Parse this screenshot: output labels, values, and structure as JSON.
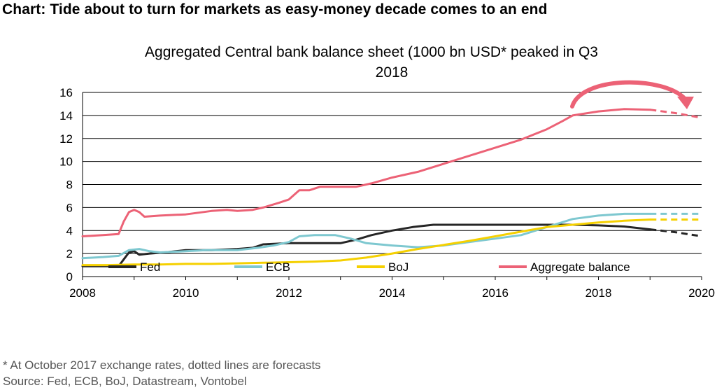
{
  "headline": "Chart: Tide about to turn for markets as easy-money decade comes to an end",
  "footnote": "* At October 2017 exchange rates, dotted lines are forecasts",
  "source": "Source: Fed, ECB, BoJ, Datastream, Vontobel",
  "colors": {
    "fed": "#262626",
    "ecb": "#7ec8d0",
    "boj": "#f5d000",
    "aggregate": "#ec6276",
    "grid": "#000000"
  },
  "chart_data": {
    "type": "line",
    "title_line1": "Aggregated Central bank balance sheet (1000 bn USD* peaked in Q3",
    "title_line2": "2018",
    "xlabel": "",
    "ylabel": "",
    "xlim": [
      2008,
      2020
    ],
    "ylim": [
      0,
      16
    ],
    "x_ticks": [
      2008,
      2010,
      2012,
      2014,
      2016,
      2018,
      2020
    ],
    "y_ticks": [
      0,
      2,
      4,
      6,
      8,
      10,
      12,
      14,
      16
    ],
    "grid": true,
    "legend_position": "bottom-inside",
    "annotation": "curved-arrow-near-peak",
    "series": [
      {
        "name": "Fed",
        "color_key": "fed",
        "actual": [
          [
            2008.0,
            0.9
          ],
          [
            2008.7,
            0.9
          ],
          [
            2008.8,
            1.5
          ],
          [
            2008.9,
            2.1
          ],
          [
            2009.0,
            2.2
          ],
          [
            2009.1,
            1.9
          ],
          [
            2009.3,
            2.0
          ],
          [
            2009.6,
            2.1
          ],
          [
            2010.0,
            2.3
          ],
          [
            2010.5,
            2.3
          ],
          [
            2011.0,
            2.4
          ],
          [
            2011.3,
            2.5
          ],
          [
            2011.5,
            2.8
          ],
          [
            2012.0,
            2.9
          ],
          [
            2012.5,
            2.9
          ],
          [
            2013.0,
            2.9
          ],
          [
            2013.3,
            3.2
          ],
          [
            2013.6,
            3.6
          ],
          [
            2014.0,
            4.0
          ],
          [
            2014.4,
            4.3
          ],
          [
            2014.8,
            4.5
          ],
          [
            2015.5,
            4.5
          ],
          [
            2016.5,
            4.5
          ],
          [
            2017.5,
            4.5
          ],
          [
            2018.0,
            4.45
          ],
          [
            2018.5,
            4.35
          ],
          [
            2019.0,
            4.1
          ]
        ],
        "forecast": [
          [
            2019.0,
            4.1
          ],
          [
            2019.5,
            3.85
          ],
          [
            2020.0,
            3.5
          ]
        ]
      },
      {
        "name": "ECB",
        "color_key": "ecb",
        "actual": [
          [
            2008.0,
            1.6
          ],
          [
            2008.4,
            1.7
          ],
          [
            2008.7,
            1.8
          ],
          [
            2008.9,
            2.3
          ],
          [
            2009.1,
            2.4
          ],
          [
            2009.3,
            2.2
          ],
          [
            2009.5,
            2.1
          ],
          [
            2010.0,
            2.2
          ],
          [
            2010.4,
            2.3
          ],
          [
            2010.8,
            2.3
          ],
          [
            2011.0,
            2.3
          ],
          [
            2011.4,
            2.5
          ],
          [
            2011.7,
            2.7
          ],
          [
            2012.0,
            3.0
          ],
          [
            2012.2,
            3.5
          ],
          [
            2012.5,
            3.6
          ],
          [
            2012.9,
            3.6
          ],
          [
            2013.2,
            3.3
          ],
          [
            2013.5,
            2.9
          ],
          [
            2014.0,
            2.7
          ],
          [
            2014.5,
            2.55
          ],
          [
            2015.0,
            2.7
          ],
          [
            2015.5,
            3.0
          ],
          [
            2016.0,
            3.3
          ],
          [
            2016.5,
            3.6
          ],
          [
            2017.0,
            4.3
          ],
          [
            2017.5,
            5.0
          ],
          [
            2018.0,
            5.3
          ],
          [
            2018.5,
            5.45
          ],
          [
            2019.0,
            5.45
          ]
        ],
        "forecast": [
          [
            2019.0,
            5.45
          ],
          [
            2019.5,
            5.45
          ],
          [
            2020.0,
            5.45
          ]
        ]
      },
      {
        "name": "BoJ",
        "color_key": "boj",
        "actual": [
          [
            2008.0,
            1.0
          ],
          [
            2008.5,
            1.0
          ],
          [
            2009.0,
            1.05
          ],
          [
            2009.5,
            1.05
          ],
          [
            2010.0,
            1.1
          ],
          [
            2010.5,
            1.1
          ],
          [
            2011.0,
            1.15
          ],
          [
            2011.5,
            1.2
          ],
          [
            2012.0,
            1.25
          ],
          [
            2012.5,
            1.3
          ],
          [
            2013.0,
            1.4
          ],
          [
            2013.5,
            1.65
          ],
          [
            2014.0,
            2.0
          ],
          [
            2014.5,
            2.4
          ],
          [
            2015.0,
            2.75
          ],
          [
            2015.5,
            3.1
          ],
          [
            2016.0,
            3.5
          ],
          [
            2016.5,
            3.9
          ],
          [
            2017.0,
            4.3
          ],
          [
            2017.5,
            4.5
          ],
          [
            2018.0,
            4.7
          ],
          [
            2018.5,
            4.85
          ],
          [
            2019.0,
            4.95
          ]
        ],
        "forecast": [
          [
            2019.0,
            4.95
          ],
          [
            2019.5,
            4.95
          ],
          [
            2020.0,
            4.95
          ]
        ]
      },
      {
        "name": "Aggregate balance",
        "color_key": "aggregate",
        "actual": [
          [
            2008.0,
            3.5
          ],
          [
            2008.4,
            3.6
          ],
          [
            2008.7,
            3.7
          ],
          [
            2008.8,
            4.8
          ],
          [
            2008.9,
            5.6
          ],
          [
            2009.0,
            5.8
          ],
          [
            2009.1,
            5.6
          ],
          [
            2009.2,
            5.2
          ],
          [
            2009.5,
            5.3
          ],
          [
            2010.0,
            5.4
          ],
          [
            2010.5,
            5.7
          ],
          [
            2010.8,
            5.8
          ],
          [
            2011.0,
            5.7
          ],
          [
            2011.3,
            5.8
          ],
          [
            2011.5,
            6.0
          ],
          [
            2011.8,
            6.4
          ],
          [
            2012.0,
            6.7
          ],
          [
            2012.2,
            7.5
          ],
          [
            2012.4,
            7.5
          ],
          [
            2012.6,
            7.8
          ],
          [
            2013.0,
            7.8
          ],
          [
            2013.3,
            7.8
          ],
          [
            2013.6,
            8.1
          ],
          [
            2014.0,
            8.6
          ],
          [
            2014.5,
            9.1
          ],
          [
            2015.0,
            9.8
          ],
          [
            2015.5,
            10.5
          ],
          [
            2016.0,
            11.2
          ],
          [
            2016.5,
            11.9
          ],
          [
            2017.0,
            12.8
          ],
          [
            2017.3,
            13.5
          ],
          [
            2017.5,
            14.0
          ],
          [
            2018.0,
            14.35
          ],
          [
            2018.5,
            14.55
          ],
          [
            2019.0,
            14.5
          ]
        ],
        "forecast": [
          [
            2019.0,
            14.5
          ],
          [
            2019.5,
            14.2
          ],
          [
            2020.0,
            13.8
          ]
        ]
      }
    ]
  }
}
